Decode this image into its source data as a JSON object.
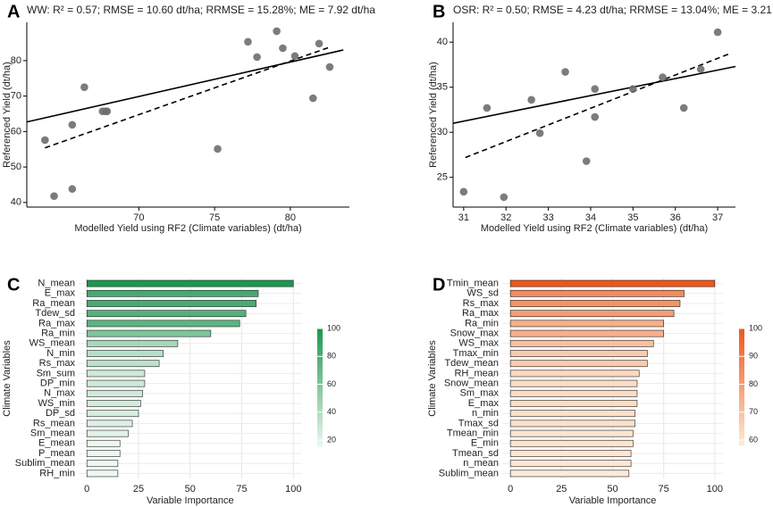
{
  "chart_data": [
    {
      "type": "scatter",
      "panel": "A",
      "title": "WW: R² = 0.57; RMSE = 10.60 dt/ha; RRMSE = 15.28%; ME = 7.92 dt/ha",
      "xlabel": "Modelled Yield using RF2 (Climate variables) (dt/ha)",
      "ylabel": "Referenced Yield (dt/ha)",
      "x": [
        63.8,
        64.4,
        65.6,
        65.6,
        66.4,
        67.6,
        67.8,
        67.9,
        75.2,
        77.2,
        77.8,
        79.1,
        79.5,
        80.3,
        81.5,
        81.9,
        82.6
      ],
      "y": [
        57.6,
        41.8,
        43.8,
        61.9,
        72.5,
        65.7,
        65.7,
        65.7,
        55.1,
        85.3,
        81.0,
        88.3,
        83.5,
        81.3,
        69.4,
        84.8,
        78.2
      ],
      "color": "#6e6e6e",
      "xlim": [
        62.6,
        83.9
      ],
      "ylim": [
        38.7,
        90.8
      ],
      "xticks": [
        70,
        75,
        80
      ],
      "yticks": [
        40,
        50,
        60,
        70,
        80
      ],
      "lines": [
        {
          "style": "solid",
          "x": [
            62.6,
            83.5
          ],
          "y": [
            62.7,
            83.0
          ]
        },
        {
          "style": "dashed",
          "x": [
            63.8,
            82.6
          ],
          "y": [
            55.4,
            83.8
          ]
        }
      ]
    },
    {
      "type": "scatter",
      "panel": "B",
      "title": "OSR: R² = 0.50; RMSE = 4.23 dt/ha; RRMSE = 13.04%; ME = 3.21 dt/ha",
      "xlabel": "Modelled Yield using RF2 (Climate variables) (dt/ha)",
      "ylabel": "Referenced Yield (dt/ha)",
      "x": [
        31.0,
        31.55,
        31.95,
        32.6,
        32.8,
        33.4,
        33.9,
        34.1,
        34.1,
        35.0,
        35.7,
        36.2,
        36.6,
        37.0
      ],
      "y": [
        23.4,
        32.7,
        22.8,
        33.6,
        29.9,
        36.7,
        26.8,
        34.8,
        31.7,
        34.8,
        36.1,
        32.7,
        37.0,
        41.1
      ],
      "color": "#6e6e6e",
      "xlim": [
        30.75,
        37.42
      ],
      "ylim": [
        21.7,
        42.2
      ],
      "xticks": [
        31,
        32,
        33,
        34,
        35,
        36,
        37
      ],
      "yticks": [
        25,
        30,
        35,
        40
      ],
      "lines": [
        {
          "style": "solid",
          "x": [
            30.75,
            37.42
          ],
          "y": [
            31.0,
            37.3
          ]
        },
        {
          "style": "dashed",
          "x": [
            31.04,
            37.27
          ],
          "y": [
            27.2,
            38.7
          ]
        }
      ]
    },
    {
      "type": "bar",
      "panel": "C",
      "orientation": "horizontal",
      "xlabel": "Variable Importance",
      "ylabel": "Climate Variables",
      "categories": [
        "N_mean",
        "E_max",
        "Ra_mean",
        "Tdew_sd",
        "Ra_max",
        "Ra_min",
        "WS_mean",
        "N_min",
        "Rs_max",
        "Sm_sum",
        "DP_min",
        "N_max",
        "WS_min",
        "DP_sd",
        "Rs_mean",
        "Sm_mean",
        "E_mean",
        "P_mean",
        "Sublim_mean",
        "RH_min"
      ],
      "values": [
        100,
        83,
        82,
        77,
        74,
        60,
        44,
        37,
        35,
        28,
        28,
        27,
        26,
        25,
        22,
        20,
        16,
        16,
        15,
        15
      ],
      "xlim": [
        -4,
        104
      ],
      "xticks": [
        0,
        25,
        50,
        75,
        100
      ],
      "grid": true,
      "colorbar": {
        "lim": [
          15,
          100
        ],
        "ticks": [
          20,
          40,
          60,
          80,
          100
        ],
        "colors": [
          "#eef8f0",
          "#1a9850"
        ]
      }
    },
    {
      "type": "bar",
      "panel": "D",
      "orientation": "horizontal",
      "xlabel": "Variable Importance",
      "ylabel": "Climate Variables",
      "categories": [
        "Tmin_mean",
        "WS_sd",
        "Rs_max",
        "Ra_max",
        "Ra_min",
        "Snow_max",
        "WS_max",
        "Tmax_min",
        "Tdew_mean",
        "RH_mean",
        "Snow_mean",
        "Sm_max",
        "E_max",
        "n_min",
        "Tmax_sd",
        "Tmean_min",
        "E_min",
        "Tmean_sd",
        "n_mean",
        "Sublim_mean"
      ],
      "values": [
        100,
        85,
        83,
        80,
        75,
        75,
        70,
        67,
        67,
        63,
        62,
        62,
        62,
        61,
        61,
        60,
        60,
        59,
        59,
        58
      ],
      "xlim": [
        -4,
        104
      ],
      "xticks": [
        0,
        25,
        50,
        75,
        100
      ],
      "grid": true,
      "colorbar": {
        "lim": [
          58,
          100
        ],
        "ticks": [
          60,
          70,
          80,
          90,
          100
        ],
        "colors": [
          "#fdebd6",
          "#f0561a"
        ]
      }
    }
  ]
}
